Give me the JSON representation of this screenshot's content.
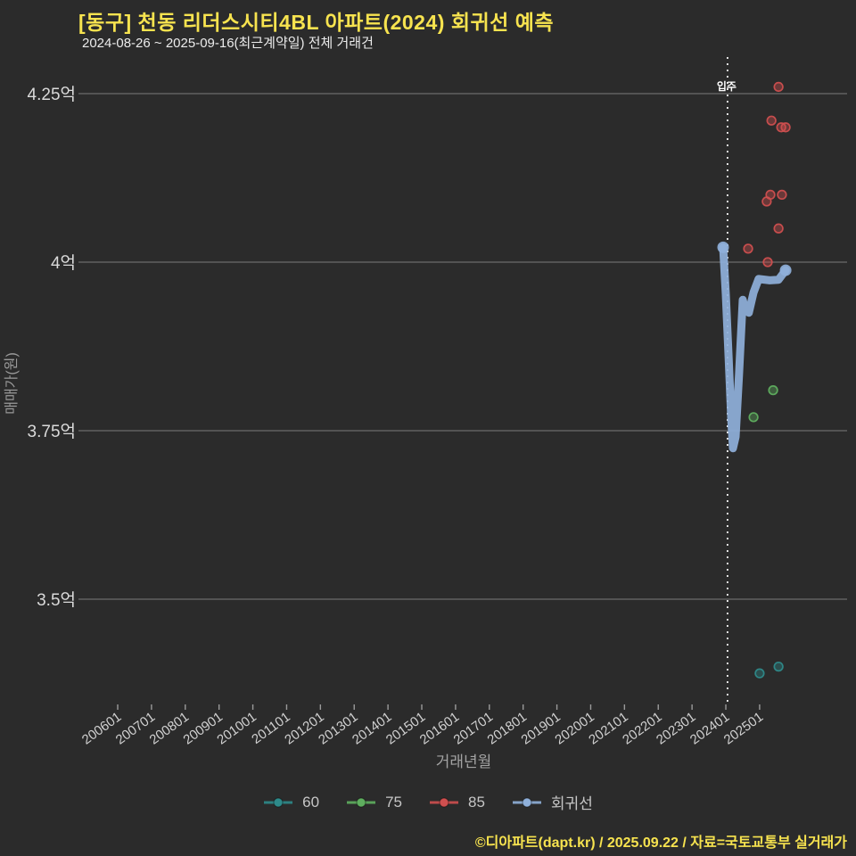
{
  "header": {
    "title": "[동구] 천동 리더스시티4BL 아파트(2024) 회귀선 예측",
    "subtitle": "2024-08-26 ~ 2025-09-16(최근계약일) 전체 거래건"
  },
  "footer": {
    "credit": "©디아파트(dapt.kr) / 2025.09.22 / 자료=국토교통부 실거래가"
  },
  "colors": {
    "background": "#2b2b2b",
    "title": "#f7e34f",
    "gridline": "#8a8a8a",
    "tick_label": "#d0d0d0",
    "y_tick_label": "#dadada",
    "axis_title": "#a3a3a3",
    "annotation": "#ffffff",
    "series_60": "#2e8a8a",
    "series_75": "#5fae5f",
    "series_85": "#cf4f4f",
    "regression": "#8fb0da"
  },
  "chart_data": {
    "type": "scatter",
    "title": "[동구] 천동 리더스시티4BL 아파트(2024) 회귀선 예측",
    "subtitle": "2024-08-26 ~ 2025-09-16(최근계약일) 전체 거래건",
    "xlabel": "거래년월",
    "ylabel": "매매가(원)",
    "grid": true,
    "legend_position": "bottom",
    "x_tick_start_year": 2006,
    "x_tick_labels": [
      "200601",
      "200701",
      "200801",
      "200901",
      "201001",
      "201101",
      "201201",
      "201301",
      "201401",
      "201501",
      "201601",
      "201701",
      "201801",
      "201901",
      "202001",
      "202101",
      "202201",
      "202301",
      "202401",
      "202501"
    ],
    "y_ticks": [
      {
        "value": 4.25,
        "label": "4.25억"
      },
      {
        "value": 4.0,
        "label": "4억"
      },
      {
        "value": 3.75,
        "label": "3.75억"
      },
      {
        "value": 3.5,
        "label": "3.5억"
      }
    ],
    "y_unit": "억",
    "annotation": {
      "label": "입주",
      "x_year": 2024.05
    },
    "series": [
      {
        "name": "60",
        "type": "scatter",
        "color": "#2e8a8a",
        "points": [
          [
            2025.56,
            3.4
          ],
          [
            2025.0,
            3.39
          ]
        ]
      },
      {
        "name": "75",
        "type": "scatter",
        "color": "#5fae5f",
        "points": [
          [
            2025.4,
            3.81
          ],
          [
            2024.82,
            3.77
          ]
        ]
      },
      {
        "name": "85",
        "type": "scatter",
        "color": "#cf4f4f",
        "points": [
          [
            2025.56,
            4.26
          ],
          [
            2025.35,
            4.21
          ],
          [
            2025.64,
            4.2
          ],
          [
            2025.77,
            4.2
          ],
          [
            2025.32,
            4.1
          ],
          [
            2025.21,
            4.09
          ],
          [
            2025.66,
            4.1
          ],
          [
            2025.56,
            4.05
          ],
          [
            2024.66,
            4.02
          ],
          [
            2025.24,
            4.0
          ]
        ]
      },
      {
        "name": "회귀선",
        "type": "line",
        "color": "#8fb0da",
        "points": [
          [
            2023.92,
            4.022
          ],
          [
            2024.0,
            3.952
          ],
          [
            2024.08,
            3.86
          ],
          [
            2024.16,
            3.767
          ],
          [
            2024.21,
            3.724
          ],
          [
            2024.29,
            3.741
          ],
          [
            2024.39,
            3.833
          ],
          [
            2024.47,
            3.913
          ],
          [
            2024.5,
            3.944
          ],
          [
            2024.57,
            3.93
          ],
          [
            2024.68,
            3.925
          ],
          [
            2024.82,
            3.955
          ],
          [
            2024.97,
            3.975
          ],
          [
            2025.3,
            3.973
          ],
          [
            2025.56,
            3.974
          ],
          [
            2025.77,
            3.988
          ]
        ]
      }
    ]
  }
}
